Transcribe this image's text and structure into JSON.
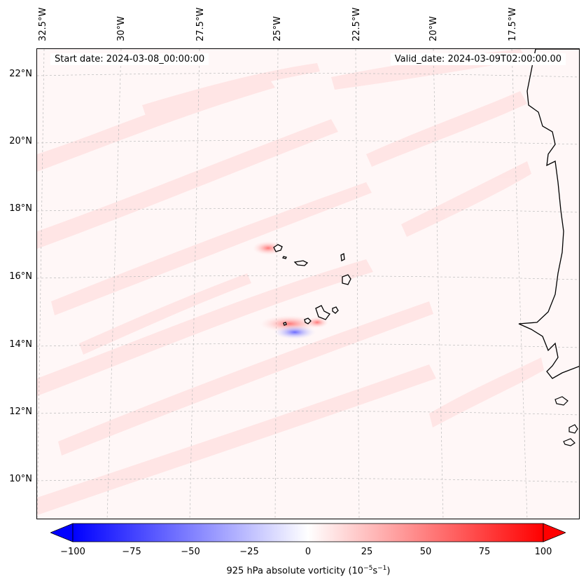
{
  "map": {
    "start_date": "Start date: 2024-03-08_00:00:00",
    "valid_date": "Valid_date: 2024-03-09T02:00:00.00",
    "lon_labels": [
      "32.5°W",
      "30°W",
      "27.5°W",
      "25°W",
      "22.5°W",
      "20°W",
      "17.5°W"
    ],
    "lat_labels": [
      "22°N",
      "20°N",
      "18°N",
      "16°N",
      "14°N",
      "12°N",
      "10°N"
    ],
    "features": [
      "Cape Verde islands",
      "West African coastline"
    ]
  },
  "colorbar": {
    "ticks": [
      "−100",
      "−75",
      "−50",
      "−25",
      "0",
      "25",
      "50",
      "75",
      "100"
    ],
    "label_prefix": "925 hPa absolute vorticity (10",
    "label_exp1": "−5",
    "label_mid": "s",
    "label_exp2": "−1",
    "label_suffix": ")",
    "min": -100,
    "max": 100,
    "colors": {
      "low": "#0000ff",
      "mid": "#ffffff",
      "high": "#ff0000"
    }
  }
}
